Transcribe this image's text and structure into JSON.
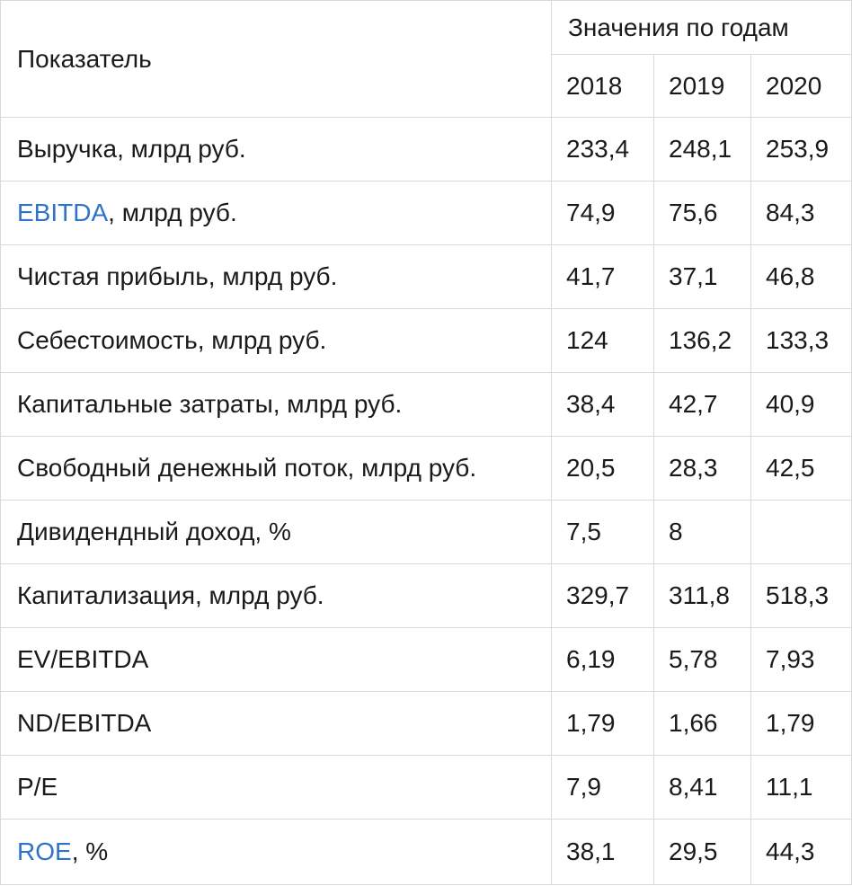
{
  "table": {
    "header": {
      "indicator": "Показатель",
      "group": "Значения по годам",
      "years": [
        "2018",
        "2019",
        "2020"
      ]
    },
    "rows": [
      {
        "link": "",
        "label": "Выручка, млрд руб.",
        "values": [
          "233,4",
          "248,1",
          "253,9"
        ]
      },
      {
        "link": "EBITDA",
        "label": ", млрд руб.",
        "values": [
          "74,9",
          "75,6",
          "84,3"
        ]
      },
      {
        "link": "",
        "label": "Чистая прибыль, млрд руб.",
        "values": [
          "41,7",
          "37,1",
          "46,8"
        ]
      },
      {
        "link": "",
        "label": "Себестоимость, млрд руб.",
        "values": [
          "124",
          "136,2",
          "133,3"
        ]
      },
      {
        "link": "",
        "label": "Капитальные затраты, млрд руб.",
        "values": [
          "38,4",
          "42,7",
          "40,9"
        ]
      },
      {
        "link": "",
        "label": "Свободный денежный поток, млрд руб.",
        "values": [
          "20,5",
          "28,3",
          "42,5"
        ]
      },
      {
        "link": "",
        "label": "Дивидендный доход, %",
        "values": [
          "7,5",
          "8",
          ""
        ]
      },
      {
        "link": "",
        "label": "Капитализация, млрд руб.",
        "values": [
          "329,7",
          "311,8",
          "518,3"
        ]
      },
      {
        "link": "",
        "label": "EV/EBITDA",
        "values": [
          "6,19",
          "5,78",
          "7,93"
        ]
      },
      {
        "link": "",
        "label": "ND/EBITDA",
        "values": [
          "1,79",
          "1,66",
          "1,79"
        ]
      },
      {
        "link": "",
        "label": "P/E",
        "values": [
          "7,9",
          "8,41",
          "11,1"
        ]
      },
      {
        "link": "ROE",
        "label": ", %",
        "values": [
          "38,1",
          "29,5",
          "44,3"
        ]
      }
    ]
  },
  "colors": {
    "link": "#2f72c9",
    "border": "#d9d9d9",
    "text": "#1a1a1a"
  }
}
